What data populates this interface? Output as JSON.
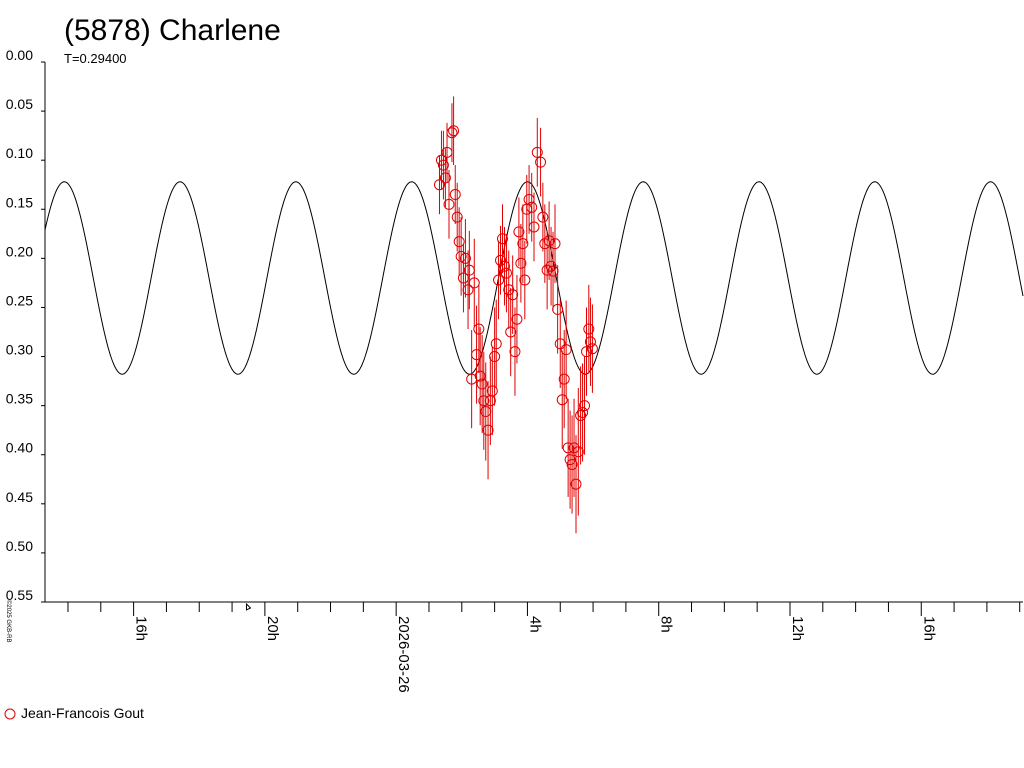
{
  "chart_data": {
    "type": "scatter",
    "title": "(5878) Charlene",
    "subtitle": "T=0.29400",
    "credit": "©2025 GKB-RB",
    "ylim": [
      0.55,
      0.0
    ],
    "y_inverted": true,
    "y_ticks": [
      "0.00",
      "0.05",
      "0.10",
      "0.15",
      "0.20",
      "0.25",
      "0.30",
      "0.35",
      "0.40",
      "0.45",
      "0.50",
      "0.55"
    ],
    "x_ticks": [
      {
        "hour": -8,
        "label": "16h"
      },
      {
        "hour": -4,
        "label": "20h"
      },
      {
        "hour": 0,
        "label": "2026-03-26"
      },
      {
        "hour": 4,
        "label": "4h"
      },
      {
        "hour": 8,
        "label": "8h"
      },
      {
        "hour": 12,
        "label": "12h"
      },
      {
        "hour": 16,
        "label": "16h"
      }
    ],
    "xlim_hours": [
      -10.7,
      19.1
    ],
    "model": {
      "period_hours": 3.528,
      "mean": 0.22,
      "amplitude": 0.098,
      "peak_hour": 4.0
    },
    "series": [
      {
        "name": "Jean-Francois Gout",
        "color": "#e00000",
        "marker": "circle-open",
        "points": [
          {
            "x": 1.32,
            "y": 0.125,
            "err": 0.03
          },
          {
            "x": 1.38,
            "y": 0.1,
            "err": 0.03
          },
          {
            "x": 1.44,
            "y": 0.105,
            "err": 0.035
          },
          {
            "x": 1.5,
            "y": 0.118,
            "err": 0.03
          },
          {
            "x": 1.55,
            "y": 0.092,
            "err": 0.03
          },
          {
            "x": 1.61,
            "y": 0.145,
            "err": 0.035
          },
          {
            "x": 1.7,
            "y": 0.072,
            "err": 0.03
          },
          {
            "x": 1.75,
            "y": 0.07,
            "err": 0.035
          },
          {
            "x": 1.8,
            "y": 0.135,
            "err": 0.03
          },
          {
            "x": 1.86,
            "y": 0.158,
            "err": 0.035
          },
          {
            "x": 1.92,
            "y": 0.183,
            "err": 0.035
          },
          {
            "x": 1.98,
            "y": 0.198,
            "err": 0.04
          },
          {
            "x": 2.05,
            "y": 0.22,
            "err": 0.035
          },
          {
            "x": 2.11,
            "y": 0.2,
            "err": 0.04
          },
          {
            "x": 2.19,
            "y": 0.232,
            "err": 0.04
          },
          {
            "x": 2.23,
            "y": 0.212,
            "err": 0.04
          },
          {
            "x": 2.3,
            "y": 0.323,
            "err": 0.05
          },
          {
            "x": 2.38,
            "y": 0.225,
            "err": 0.045
          },
          {
            "x": 2.45,
            "y": 0.298,
            "err": 0.05
          },
          {
            "x": 2.52,
            "y": 0.272,
            "err": 0.045
          },
          {
            "x": 2.56,
            "y": 0.32,
            "err": 0.05
          },
          {
            "x": 2.62,
            "y": 0.328,
            "err": 0.05
          },
          {
            "x": 2.67,
            "y": 0.345,
            "err": 0.05
          },
          {
            "x": 2.73,
            "y": 0.356,
            "err": 0.05
          },
          {
            "x": 2.8,
            "y": 0.375,
            "err": 0.05
          },
          {
            "x": 2.87,
            "y": 0.345,
            "err": 0.045
          },
          {
            "x": 2.93,
            "y": 0.335,
            "err": 0.045
          },
          {
            "x": 3.0,
            "y": 0.3,
            "err": 0.05
          },
          {
            "x": 3.05,
            "y": 0.287,
            "err": 0.045
          },
          {
            "x": 3.12,
            "y": 0.222,
            "err": 0.04
          },
          {
            "x": 3.18,
            "y": 0.202,
            "err": 0.035
          },
          {
            "x": 3.24,
            "y": 0.18,
            "err": 0.035
          },
          {
            "x": 3.3,
            "y": 0.208,
            "err": 0.04
          },
          {
            "x": 3.36,
            "y": 0.215,
            "err": 0.04
          },
          {
            "x": 3.43,
            "y": 0.232,
            "err": 0.04
          },
          {
            "x": 3.49,
            "y": 0.275,
            "err": 0.045
          },
          {
            "x": 3.55,
            "y": 0.237,
            "err": 0.04
          },
          {
            "x": 3.62,
            "y": 0.295,
            "err": 0.045
          },
          {
            "x": 3.68,
            "y": 0.262,
            "err": 0.045
          },
          {
            "x": 3.74,
            "y": 0.173,
            "err": 0.035
          },
          {
            "x": 3.8,
            "y": 0.205,
            "err": 0.04
          },
          {
            "x": 3.86,
            "y": 0.185,
            "err": 0.04
          },
          {
            "x": 3.92,
            "y": 0.222,
            "err": 0.04
          },
          {
            "x": 3.98,
            "y": 0.15,
            "err": 0.035
          },
          {
            "x": 4.05,
            "y": 0.14,
            "err": 0.035
          },
          {
            "x": 4.13,
            "y": 0.148,
            "err": 0.035
          },
          {
            "x": 4.2,
            "y": 0.168,
            "err": 0.035
          },
          {
            "x": 4.3,
            "y": 0.092,
            "err": 0.035
          },
          {
            "x": 4.4,
            "y": 0.102,
            "err": 0.035
          },
          {
            "x": 4.47,
            "y": 0.158,
            "err": 0.035
          },
          {
            "x": 4.53,
            "y": 0.185,
            "err": 0.04
          },
          {
            "x": 4.6,
            "y": 0.212,
            "err": 0.04
          },
          {
            "x": 4.66,
            "y": 0.182,
            "err": 0.04
          },
          {
            "x": 4.72,
            "y": 0.208,
            "err": 0.04
          },
          {
            "x": 4.78,
            "y": 0.213,
            "err": 0.04
          },
          {
            "x": 4.84,
            "y": 0.185,
            "err": 0.04
          },
          {
            "x": 4.92,
            "y": 0.252,
            "err": 0.045
          },
          {
            "x": 5.0,
            "y": 0.287,
            "err": 0.045
          },
          {
            "x": 5.06,
            "y": 0.344,
            "err": 0.05
          },
          {
            "x": 5.12,
            "y": 0.323,
            "err": 0.05
          },
          {
            "x": 5.18,
            "y": 0.293,
            "err": 0.05
          },
          {
            "x": 5.24,
            "y": 0.393,
            "err": 0.05
          },
          {
            "x": 5.3,
            "y": 0.405,
            "err": 0.05
          },
          {
            "x": 5.36,
            "y": 0.41,
            "err": 0.05
          },
          {
            "x": 5.42,
            "y": 0.393,
            "err": 0.05
          },
          {
            "x": 5.48,
            "y": 0.43,
            "err": 0.05
          },
          {
            "x": 5.55,
            "y": 0.397,
            "err": 0.065
          },
          {
            "x": 5.62,
            "y": 0.36,
            "err": 0.05
          },
          {
            "x": 5.68,
            "y": 0.357,
            "err": 0.05
          },
          {
            "x": 5.74,
            "y": 0.35,
            "err": 0.05
          },
          {
            "x": 5.8,
            "y": 0.295,
            "err": 0.045
          },
          {
            "x": 5.87,
            "y": 0.272,
            "err": 0.045
          },
          {
            "x": 5.92,
            "y": 0.285,
            "err": 0.045
          },
          {
            "x": 5.98,
            "y": 0.292,
            "err": 0.045
          }
        ]
      }
    ]
  }
}
